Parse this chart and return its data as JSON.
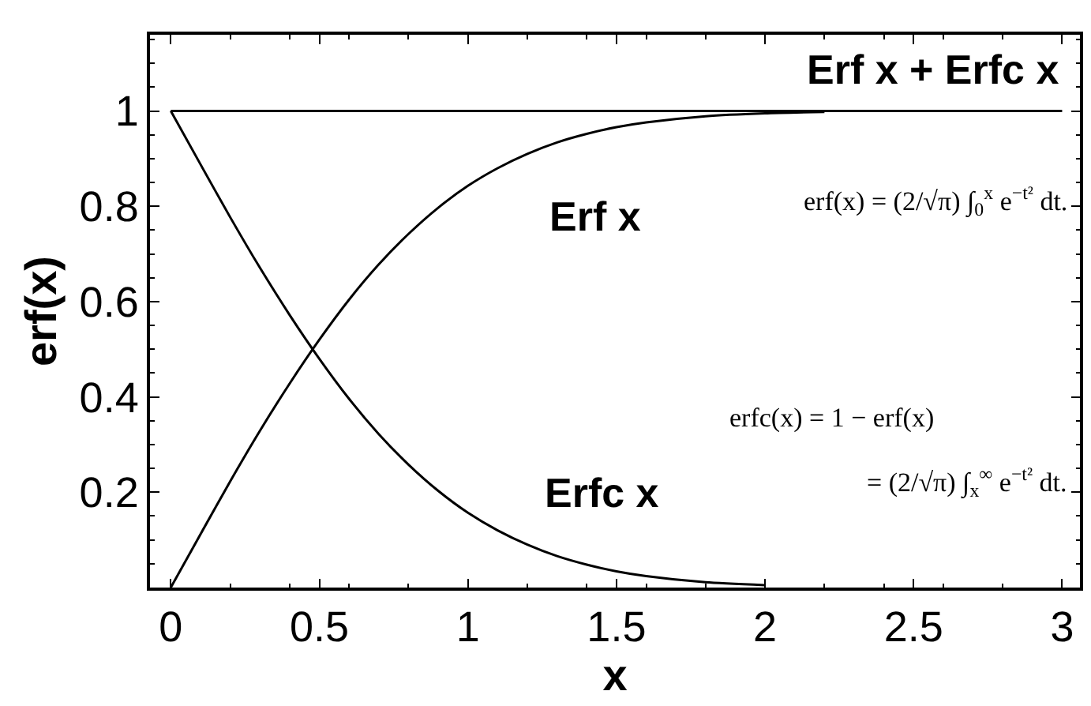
{
  "chart_data": {
    "type": "line",
    "xlabel": "x",
    "ylabel": "erf(x)",
    "xlim": [
      -0.07,
      3.06
    ],
    "ylim": [
      0,
      1.16
    ],
    "xticks": [
      0,
      0.5,
      1,
      1.5,
      2,
      2.5,
      3
    ],
    "yticks": [
      0.2,
      0.4,
      0.6,
      0.8,
      1
    ],
    "marker": "none",
    "line_style": "solid",
    "series": [
      {
        "name": "Erf x",
        "color": "#000000",
        "x": [
          0,
          0.1,
          0.2,
          0.3,
          0.4,
          0.5,
          0.6,
          0.7,
          0.8,
          0.9,
          1.0,
          1.1,
          1.2,
          1.3,
          1.4,
          1.5,
          1.6,
          1.8,
          2.0,
          2.2
        ],
        "values": [
          0,
          0.112,
          0.223,
          0.329,
          0.428,
          0.52,
          0.604,
          0.678,
          0.742,
          0.797,
          0.843,
          0.88,
          0.91,
          0.934,
          0.952,
          0.966,
          0.976,
          0.989,
          0.995,
          0.998
        ]
      },
      {
        "name": "Erfc x",
        "color": "#000000",
        "x": [
          0,
          0.1,
          0.2,
          0.3,
          0.4,
          0.5,
          0.6,
          0.7,
          0.8,
          0.9,
          1.0,
          1.1,
          1.2,
          1.3,
          1.4,
          1.5,
          1.6,
          1.8,
          2.0
        ],
        "values": [
          1,
          0.888,
          0.777,
          0.671,
          0.572,
          0.48,
          0.396,
          0.322,
          0.258,
          0.203,
          0.157,
          0.12,
          0.09,
          0.066,
          0.048,
          0.034,
          0.024,
          0.011,
          0.005
        ]
      },
      {
        "name": "Erf x + Erfc x",
        "color": "#000000",
        "x": [
          0,
          3
        ],
        "values": [
          1,
          1
        ]
      }
    ],
    "annotations": [
      "erf(x) = (2/√π) ∫$_{0}$$^{x}$ e$^{−t²}$ dt.",
      "erfc(x) = 1 − erf(x)",
      "= (2/√π) ∫$_{x}$$^{∞}$ e$^{−t²}$ dt."
    ]
  }
}
